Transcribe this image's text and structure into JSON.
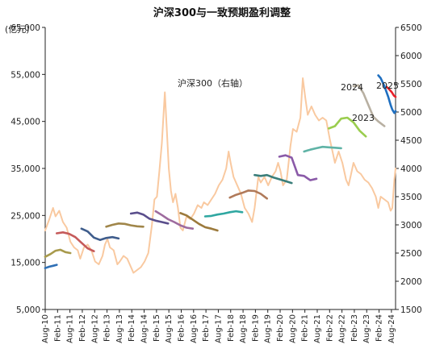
{
  "chart_data": {
    "type": "line",
    "title": "沪深300与一致预期盈利调整",
    "left_axis": {
      "unit": "(亿元)",
      "ylim": [
        5000,
        65000
      ],
      "ticks": [
        "5,000",
        "15,000",
        "25,000",
        "35,000",
        "45,000",
        "55,000",
        "65,000"
      ]
    },
    "right_axis": {
      "ylim": [
        1500,
        6500
      ],
      "ticks": [
        "1500",
        "2000",
        "2500",
        "3000",
        "3500",
        "4000",
        "4500",
        "5000",
        "5500",
        "6000",
        "6500"
      ]
    },
    "x_ticks": [
      "Aug-10",
      "Feb-11",
      "Aug-11",
      "Feb-12",
      "Aug-12",
      "Feb-13",
      "Aug-13",
      "Feb-14",
      "Aug-14",
      "Feb-15",
      "Aug-15",
      "Feb-16",
      "Aug-16",
      "Feb-17",
      "Aug-17",
      "Feb-18",
      "Aug-18",
      "Feb-19",
      "Aug-19",
      "Feb-20",
      "Aug-20",
      "Feb-21",
      "Aug-21",
      "Feb-22",
      "Aug-22",
      "Feb-23",
      "Aug-23",
      "Feb-24",
      "Aug-24"
    ],
    "x_range": [
      2010.583,
      2024.75
    ],
    "annotations": [
      "沪深300（右轴）",
      "2024",
      "2025",
      "2023"
    ],
    "csi300_right_axis": {
      "color": "#F9C9A0",
      "x": [
        2010.58,
        2010.75,
        2010.9,
        2011.0,
        2011.15,
        2011.3,
        2011.45,
        2011.6,
        2011.75,
        2011.9,
        2012.0,
        2012.15,
        2012.3,
        2012.45,
        2012.6,
        2012.75,
        2012.9,
        2013.0,
        2013.1,
        2013.2,
        2013.35,
        2013.5,
        2013.6,
        2013.75,
        2013.9,
        2014.0,
        2014.15,
        2014.3,
        2014.45,
        2014.6,
        2014.75,
        2014.9,
        2015.0,
        2015.1,
        2015.2,
        2015.3,
        2015.42,
        2015.5,
        2015.58,
        2015.67,
        2015.75,
        2015.85,
        2015.95,
        2016.05,
        2016.15,
        2016.3,
        2016.45,
        2016.6,
        2016.75,
        2016.9,
        2017.0,
        2017.15,
        2017.3,
        2017.45,
        2017.6,
        2017.75,
        2017.9,
        2018.0,
        2018.08,
        2018.2,
        2018.35,
        2018.5,
        2018.65,
        2018.8,
        2018.95,
        2019.05,
        2019.2,
        2019.3,
        2019.45,
        2019.6,
        2019.75,
        2019.9,
        2020.0,
        2020.1,
        2020.2,
        2020.35,
        2020.5,
        2020.6,
        2020.75,
        2020.9,
        2021.0,
        2021.1,
        2021.2,
        2021.35,
        2021.5,
        2021.65,
        2021.8,
        2021.95,
        2022.1,
        2022.2,
        2022.3,
        2022.45,
        2022.6,
        2022.75,
        2022.85,
        2022.95,
        2023.05,
        2023.2,
        2023.35,
        2023.5,
        2023.65,
        2023.8,
        2023.95,
        2024.05,
        2024.15,
        2024.3,
        2024.45,
        2024.55,
        2024.62,
        2024.7,
        2024.75
      ],
      "y": [
        2900,
        3100,
        3300,
        3150,
        3250,
        3050,
        2950,
        2700,
        2600,
        2550,
        2400,
        2600,
        2650,
        2550,
        2350,
        2300,
        2450,
        2650,
        2750,
        2600,
        2550,
        2300,
        2350,
        2450,
        2400,
        2300,
        2150,
        2200,
        2250,
        2350,
        2500,
        3000,
        3450,
        3500,
        3950,
        4450,
        5350,
        4700,
        4000,
        3600,
        3400,
        3550,
        3300,
        2950,
        2900,
        3150,
        3100,
        3200,
        3350,
        3300,
        3400,
        3350,
        3450,
        3550,
        3700,
        3800,
        4000,
        4300,
        4100,
        3850,
        3700,
        3550,
        3300,
        3200,
        3050,
        3300,
        3850,
        3750,
        3850,
        3700,
        3850,
        3950,
        4100,
        3950,
        3700,
        3800,
        4400,
        4700,
        4650,
        4900,
        5600,
        5250,
        4950,
        5100,
        4950,
        4850,
        4900,
        4850,
        4500,
        4300,
        4100,
        4300,
        4100,
        3800,
        3700,
        3900,
        4100,
        3950,
        3900,
        3800,
        3750,
        3650,
        3500,
        3300,
        3500,
        3450,
        3400,
        3250,
        3300,
        3800,
        4000
      ]
    },
    "eps_series_left_axis": [
      {
        "year_label": "2010",
        "color": "#2E6FB5",
        "x": [
          2010.58,
          2010.75,
          2010.9,
          2011.05
        ],
        "y": [
          13800,
          14100,
          14300,
          14500
        ]
      },
      {
        "year_label": "2011",
        "color": "#A89A4C",
        "x": [
          2010.58,
          2010.8,
          2011.0,
          2011.2,
          2011.4,
          2011.6
        ],
        "y": [
          16200,
          16800,
          17500,
          17700,
          17200,
          17000
        ]
      },
      {
        "year_label": "2012",
        "color": "#C55A5A",
        "x": [
          2011.05,
          2011.3,
          2011.55,
          2011.8,
          2012.05,
          2012.3,
          2012.55
        ],
        "y": [
          21200,
          21400,
          21100,
          20400,
          19200,
          18000,
          17400
        ]
      },
      {
        "year_label": "2013",
        "color": "#3F5D8C",
        "x": [
          2012.05,
          2012.3,
          2012.55,
          2012.8,
          2013.05,
          2013.3,
          2013.55
        ],
        "y": [
          22200,
          21600,
          20300,
          19800,
          20200,
          20400,
          20100
        ]
      },
      {
        "year_label": "2014",
        "color": "#A0864A",
        "x": [
          2013.05,
          2013.3,
          2013.55,
          2013.8,
          2014.05,
          2014.3,
          2014.55
        ],
        "y": [
          22600,
          23000,
          23300,
          23200,
          22900,
          22700,
          22600
        ]
      },
      {
        "year_label": "2015",
        "color": "#5A4E8C",
        "x": [
          2014.05,
          2014.3,
          2014.55,
          2014.8,
          2015.05,
          2015.3,
          2015.55
        ],
        "y": [
          25400,
          25600,
          25200,
          24300,
          23900,
          23600,
          23300
        ]
      },
      {
        "year_label": "2016",
        "color": "#9E6B9E",
        "x": [
          2015.05,
          2015.3,
          2015.55,
          2015.8,
          2016.05,
          2016.3,
          2016.55
        ],
        "y": [
          25900,
          25100,
          24200,
          23600,
          22900,
          22400,
          22200
        ]
      },
      {
        "year_label": "2017",
        "color": "#9C7A3C",
        "x": [
          2016.05,
          2016.3,
          2016.55,
          2016.8,
          2017.05,
          2017.3,
          2017.55
        ],
        "y": [
          25500,
          25000,
          24100,
          23200,
          22500,
          22200,
          21800
        ]
      },
      {
        "year_label": "2018",
        "color": "#2FA7A1",
        "x": [
          2017.05,
          2017.3,
          2017.55,
          2017.8,
          2018.05,
          2018.3,
          2018.55
        ],
        "y": [
          24800,
          24900,
          25200,
          25400,
          25700,
          25900,
          25700
        ]
      },
      {
        "year_label": "2019",
        "color": "#B07A5A",
        "x": [
          2018.05,
          2018.3,
          2018.55,
          2018.8,
          2019.05,
          2019.3,
          2019.55
        ],
        "y": [
          28800,
          29400,
          29800,
          30300,
          30200,
          29600,
          28600
        ]
      },
      {
        "year_label": "2020",
        "color": "#3A7E7A",
        "x": [
          2019.05,
          2019.3,
          2019.55,
          2019.8,
          2020.05,
          2020.3,
          2020.55
        ],
        "y": [
          33600,
          33400,
          33600,
          33100,
          32700,
          32300,
          31900
        ]
      },
      {
        "year_label": "2021",
        "color": "#8A5AA8",
        "x": [
          2020.05,
          2020.3,
          2020.55,
          2020.8,
          2021.05,
          2021.3,
          2021.55
        ],
        "y": [
          37500,
          37800,
          37300,
          33600,
          33400,
          32500,
          32800
        ]
      },
      {
        "year_label": "2022",
        "color": "#5FB3A6",
        "x": [
          2021.05,
          2021.3,
          2021.55,
          2021.8,
          2022.05,
          2022.3,
          2022.55
        ],
        "y": [
          38600,
          39000,
          39300,
          39600,
          39500,
          39400,
          39300
        ]
      },
      {
        "year_label": "2023",
        "color": "#9ACD4E",
        "x": [
          2022.05,
          2022.3,
          2022.55,
          2022.8,
          2023.05,
          2023.3,
          2023.55
        ],
        "y": [
          43500,
          44000,
          45600,
          45800,
          44800,
          43000,
          41800
        ]
      },
      {
        "year_label": "2024",
        "color": "#B8B0A2",
        "x": [
          2023.05,
          2023.25,
          2023.45,
          2023.65,
          2023.85,
          2024.05,
          2024.3
        ],
        "y": [
          52500,
          52700,
          51000,
          48500,
          46000,
          45000,
          44000
        ]
      },
      {
        "year_label": "2025",
        "color": "#1F6FC0",
        "x": [
          2024.05,
          2024.15,
          2024.3,
          2024.45,
          2024.55,
          2024.62,
          2024.7,
          2024.75
        ],
        "y": [
          54800,
          54200,
          52500,
          50300,
          48500,
          47500,
          46800,
          47200
        ]
      },
      {
        "year_label": "2025-red",
        "color": "#E8202A",
        "x": [
          2024.4,
          2024.5,
          2024.6,
          2024.68,
          2024.75
        ],
        "y": [
          52300,
          51800,
          51200,
          50500,
          50200
        ]
      }
    ]
  }
}
